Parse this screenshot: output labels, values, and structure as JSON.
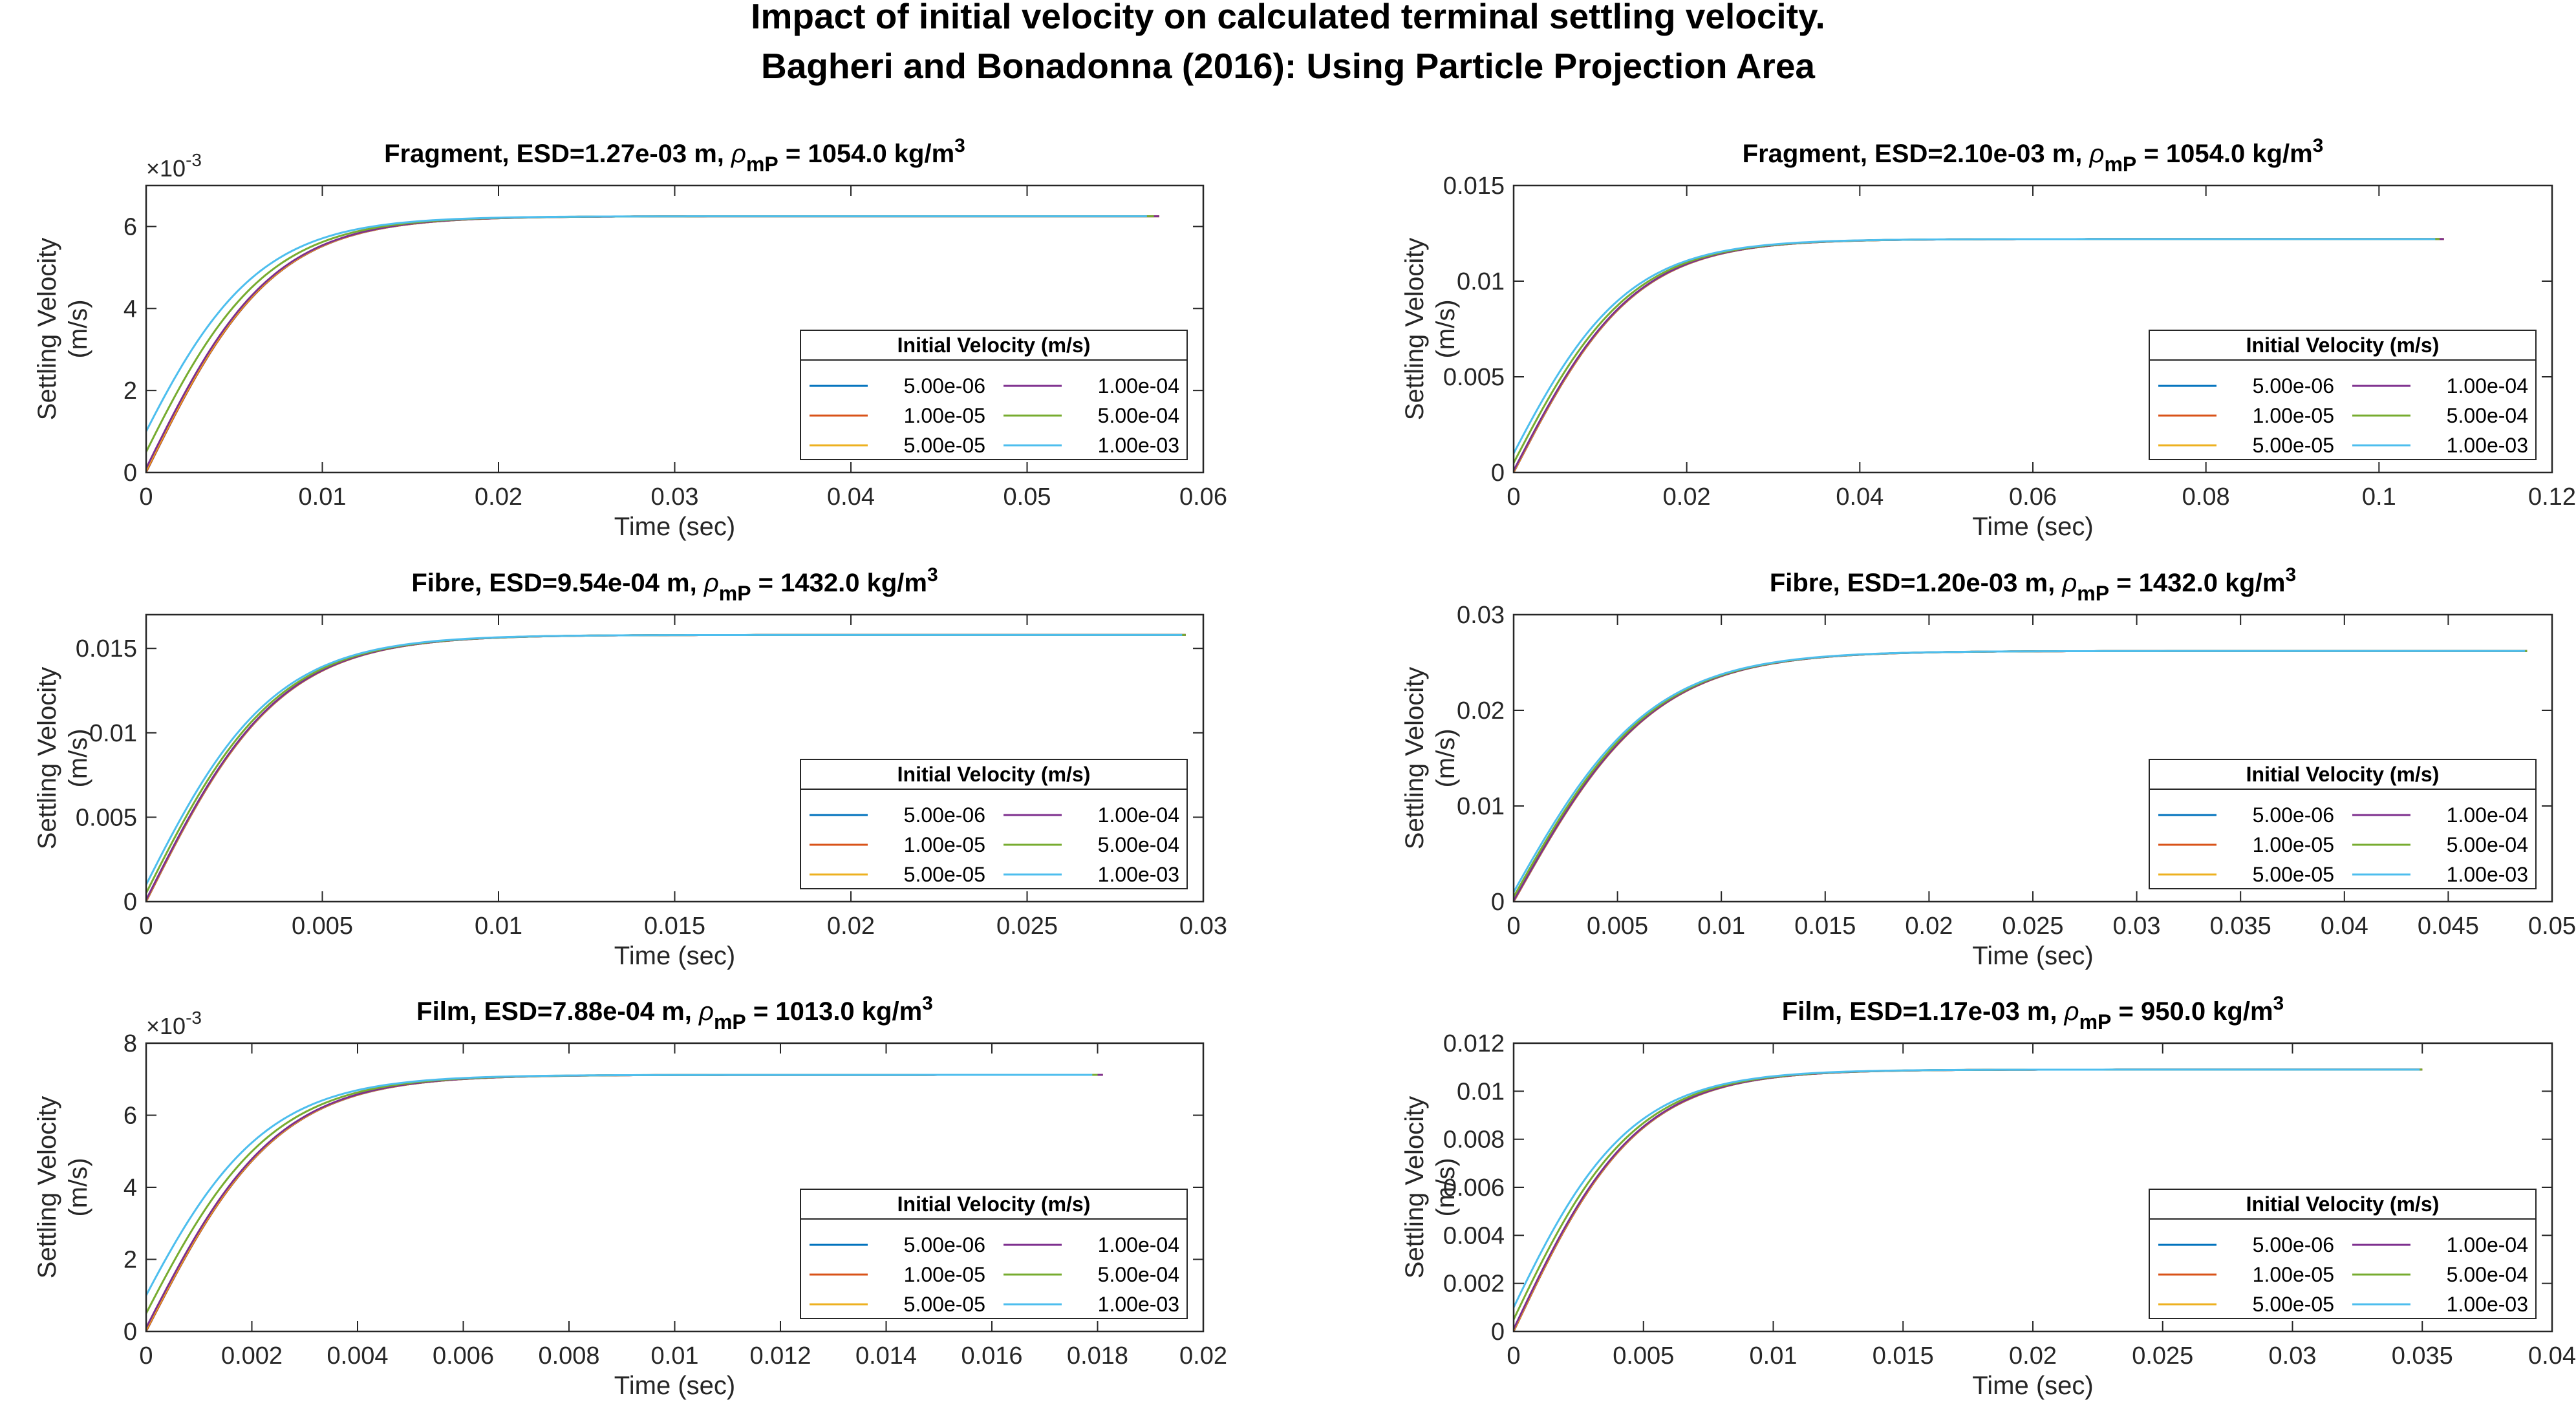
{
  "figure": {
    "title_line1": "Impact of initial velocity on calculated terminal settling velocity.",
    "title_line2": "Bagheri and Bonadonna (2016): Using Particle Projection Area"
  },
  "colors": {
    "5.00e-06": "#0072BD",
    "1.00e-05": "#D95319",
    "5.00e-05": "#EDB120",
    "1.00e-04": "#7E2F8E",
    "5.00e-04": "#77AC30",
    "1.00e-03": "#4DBEEE"
  },
  "chart_data": [
    {
      "type": "line",
      "title_prefix": "Fragment, ESD=1.27e-03 m, ",
      "title_rho": "ρ",
      "title_sub": "mP",
      "title_mid": " = 1054.0 kg/m",
      "title_sup": "3",
      "xlabel": "Time (sec)",
      "ylabel_line1": "Settling Velocity",
      "ylabel_line2": "(m/s)",
      "xlim": [
        0,
        0.06
      ],
      "ylim": [
        0,
        0.007
      ],
      "xticks": [
        "0",
        "0.01",
        "0.02",
        "0.03",
        "0.04",
        "0.05",
        "0.06"
      ],
      "yticks": [
        "0",
        "2",
        "4",
        "6"
      ],
      "ytick_values": [
        0,
        0.002,
        0.004,
        0.006
      ],
      "exponent_label": "×10",
      "exponent_value": "-3",
      "legend_title": "Initial Velocity (m/s)",
      "legend_placement": "lower-right",
      "terminal_velocity": 0.00625,
      "time_constant": 0.0072,
      "series": [
        {
          "name": "5.00e-06",
          "initial": 5e-06,
          "end_time": 0.0575
        },
        {
          "name": "1.00e-05",
          "initial": 1e-05,
          "end_time": 0.0575
        },
        {
          "name": "5.00e-05",
          "initial": 5e-05,
          "end_time": 0.0575
        },
        {
          "name": "1.00e-04",
          "initial": 0.0001,
          "end_time": 0.0575
        },
        {
          "name": "5.00e-04",
          "initial": 0.0005,
          "end_time": 0.0572
        },
        {
          "name": "1.00e-03",
          "initial": 0.001,
          "end_time": 0.0568
        }
      ]
    },
    {
      "type": "line",
      "title_prefix": "Fragment, ESD=2.10e-03 m, ",
      "title_rho": "ρ",
      "title_sub": "mP",
      "title_mid": " = 1054.0 kg/m",
      "title_sup": "3",
      "xlabel": "Time (sec)",
      "ylabel_line1": "Settling Velocity",
      "ylabel_line2": "(m/s)",
      "xlim": [
        0,
        0.12
      ],
      "ylim": [
        0,
        0.015
      ],
      "xticks": [
        "0",
        "0.02",
        "0.04",
        "0.06",
        "0.08",
        "0.1",
        "0.12"
      ],
      "yticks": [
        "0",
        "0.005",
        "0.01",
        "0.015"
      ],
      "ytick_values": [
        0,
        0.005,
        0.01,
        0.015
      ],
      "legend_title": "Initial Velocity (m/s)",
      "legend_placement": "lower-right",
      "terminal_velocity": 0.0122,
      "time_constant": 0.014,
      "series": [
        {
          "name": "5.00e-06",
          "initial": 5e-06,
          "end_time": 0.1075
        },
        {
          "name": "1.00e-05",
          "initial": 1e-05,
          "end_time": 0.1075
        },
        {
          "name": "5.00e-05",
          "initial": 5e-05,
          "end_time": 0.1075
        },
        {
          "name": "1.00e-04",
          "initial": 0.0001,
          "end_time": 0.1075
        },
        {
          "name": "5.00e-04",
          "initial": 0.0005,
          "end_time": 0.107
        },
        {
          "name": "1.00e-03",
          "initial": 0.001,
          "end_time": 0.1065
        }
      ]
    },
    {
      "type": "line",
      "title_prefix": "Fibre, ESD=9.54e-04 m, ",
      "title_rho": "ρ",
      "title_sub": "mP",
      "title_mid": " = 1432.0 kg/m",
      "title_sup": "3",
      "xlabel": "Time (sec)",
      "ylabel_line1": "Settling Velocity",
      "ylabel_line2": "(m/s)",
      "xlim": [
        0,
        0.03
      ],
      "ylim": [
        0,
        0.017
      ],
      "xticks": [
        "0",
        "0.005",
        "0.01",
        "0.015",
        "0.02",
        "0.025",
        "0.03"
      ],
      "yticks": [
        "0",
        "0.005",
        "0.01",
        "0.015"
      ],
      "ytick_values": [
        0,
        0.005,
        0.01,
        0.015
      ],
      "legend_title": "Initial Velocity (m/s)",
      "legend_placement": "lower-right",
      "terminal_velocity": 0.0158,
      "time_constant": 0.0038,
      "series": [
        {
          "name": "5.00e-06",
          "initial": 5e-06,
          "end_time": 0.0295
        },
        {
          "name": "1.00e-05",
          "initial": 1e-05,
          "end_time": 0.0295
        },
        {
          "name": "5.00e-05",
          "initial": 5e-05,
          "end_time": 0.0295
        },
        {
          "name": "1.00e-04",
          "initial": 0.0001,
          "end_time": 0.0295
        },
        {
          "name": "5.00e-04",
          "initial": 0.0005,
          "end_time": 0.0295
        },
        {
          "name": "1.00e-03",
          "initial": 0.001,
          "end_time": 0.0294
        }
      ]
    },
    {
      "type": "line",
      "title_prefix": "Fibre, ESD=1.20e-03 m, ",
      "title_rho": "ρ",
      "title_sub": "mP",
      "title_mid": " = 1432.0 kg/m",
      "title_sup": "3",
      "xlabel": "Time (sec)",
      "ylabel_line1": "Settling Velocity",
      "ylabel_line2": "(m/s)",
      "xlim": [
        0,
        0.05
      ],
      "ylim": [
        0,
        0.03
      ],
      "xticks": [
        "0",
        "0.005",
        "0.01",
        "0.015",
        "0.02",
        "0.025",
        "0.03",
        "0.035",
        "0.04",
        "0.045",
        "0.05"
      ],
      "yticks": [
        "0",
        "0.01",
        "0.02",
        "0.03"
      ],
      "ytick_values": [
        0,
        0.01,
        0.02,
        0.03
      ],
      "legend_title": "Initial Velocity (m/s)",
      "legend_placement": "lower-right",
      "terminal_velocity": 0.0262,
      "time_constant": 0.0068,
      "series": [
        {
          "name": "5.00e-06",
          "initial": 5e-06,
          "end_time": 0.0488
        },
        {
          "name": "1.00e-05",
          "initial": 1e-05,
          "end_time": 0.0488
        },
        {
          "name": "5.00e-05",
          "initial": 5e-05,
          "end_time": 0.0488
        },
        {
          "name": "1.00e-04",
          "initial": 0.0001,
          "end_time": 0.0488
        },
        {
          "name": "5.00e-04",
          "initial": 0.0005,
          "end_time": 0.0488
        },
        {
          "name": "1.00e-03",
          "initial": 0.001,
          "end_time": 0.0487
        }
      ]
    },
    {
      "type": "line",
      "title_prefix": "Film, ESD=7.88e-04 m, ",
      "title_rho": "ρ",
      "title_sub": "mP",
      "title_mid": " = 1013.0 kg/m",
      "title_sup": "3",
      "xlabel": "Time (sec)",
      "ylabel_line1": "Settling Velocity",
      "ylabel_line2": "(m/s)",
      "xlim": [
        0,
        0.02
      ],
      "ylim": [
        0,
        0.008
      ],
      "xticks": [
        "0",
        "0.002",
        "0.004",
        "0.006",
        "0.008",
        "0.01",
        "0.012",
        "0.014",
        "0.016",
        "0.018",
        "0.02"
      ],
      "yticks": [
        "0",
        "2",
        "4",
        "6",
        "8"
      ],
      "ytick_values": [
        0,
        0.002,
        0.004,
        0.006,
        0.008
      ],
      "exponent_label": "×10",
      "exponent_value": "-3",
      "legend_title": "Initial Velocity (m/s)",
      "legend_placement": "lower-right",
      "terminal_velocity": 0.00712,
      "time_constant": 0.0025,
      "series": [
        {
          "name": "5.00e-06",
          "initial": 5e-06,
          "end_time": 0.0181
        },
        {
          "name": "1.00e-05",
          "initial": 1e-05,
          "end_time": 0.0181
        },
        {
          "name": "5.00e-05",
          "initial": 5e-05,
          "end_time": 0.0181
        },
        {
          "name": "1.00e-04",
          "initial": 0.0001,
          "end_time": 0.0181
        },
        {
          "name": "5.00e-04",
          "initial": 0.0005,
          "end_time": 0.018
        },
        {
          "name": "1.00e-03",
          "initial": 0.001,
          "end_time": 0.0179
        }
      ]
    },
    {
      "type": "line",
      "title_prefix": "Film, ESD=1.17e-03 m, ",
      "title_rho": "ρ",
      "title_sub": "mP",
      "title_mid": " = 950.0 kg/m",
      "title_sup": "3",
      "xlabel": "Time (sec)",
      "ylabel_line1": "Settling Velocity",
      "ylabel_line2": "(m/s)",
      "xlim": [
        0,
        0.04
      ],
      "ylim": [
        0,
        0.012
      ],
      "xticks": [
        "0",
        "0.005",
        "0.01",
        "0.015",
        "0.02",
        "0.025",
        "0.03",
        "0.035",
        "0.04"
      ],
      "yticks": [
        "0",
        "0.002",
        "0.004",
        "0.006",
        "0.008",
        "0.01",
        "0.012"
      ],
      "ytick_values": [
        0,
        0.002,
        0.004,
        0.006,
        0.008,
        0.01,
        0.012
      ],
      "legend_title": "Initial Velocity (m/s)",
      "legend_placement": "lower-right",
      "terminal_velocity": 0.0109,
      "time_constant": 0.0048,
      "series": [
        {
          "name": "5.00e-06",
          "initial": 5e-06,
          "end_time": 0.035
        },
        {
          "name": "1.00e-05",
          "initial": 1e-05,
          "end_time": 0.035
        },
        {
          "name": "5.00e-05",
          "initial": 5e-05,
          "end_time": 0.035
        },
        {
          "name": "1.00e-04",
          "initial": 0.0001,
          "end_time": 0.035
        },
        {
          "name": "5.00e-04",
          "initial": 0.0005,
          "end_time": 0.035
        },
        {
          "name": "1.00e-03",
          "initial": 0.001,
          "end_time": 0.0349
        }
      ]
    }
  ]
}
